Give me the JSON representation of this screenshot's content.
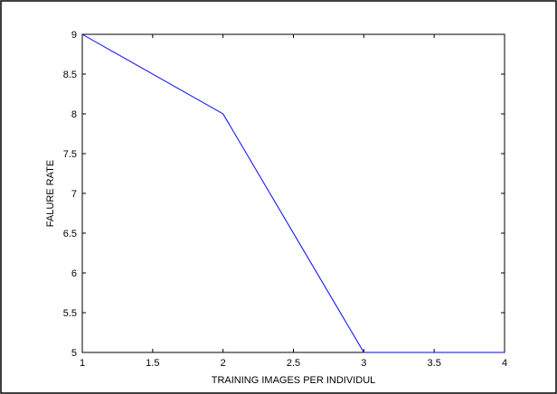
{
  "chart_data": {
    "type": "line",
    "title": "",
    "xlabel": "TRAINING IMAGES PER INDIVIDUL",
    "ylabel": "FALURE RATE",
    "xlim": [
      1,
      4
    ],
    "ylim": [
      5,
      9
    ],
    "xticks": [
      1,
      1.5,
      2,
      2.5,
      3,
      3.5,
      4
    ],
    "yticks": [
      5,
      5.5,
      6,
      6.5,
      7,
      7.5,
      8,
      8.5,
      9
    ],
    "xtick_labels": [
      "1",
      "1.5",
      "2",
      "2.5",
      "3",
      "3.5",
      "4"
    ],
    "ytick_labels": [
      "5",
      "5.5",
      "6",
      "6.5",
      "7",
      "7.5",
      "8",
      "8.5",
      "9"
    ],
    "grid": false,
    "series": [
      {
        "x": [
          1,
          2,
          3,
          4
        ],
        "y": [
          9,
          8,
          5,
          5
        ],
        "color": "#0000ff"
      }
    ]
  }
}
